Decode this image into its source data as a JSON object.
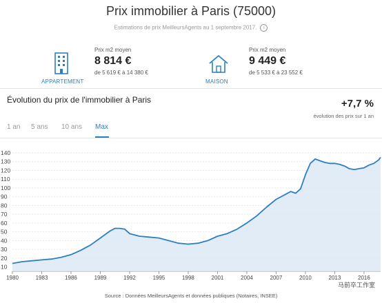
{
  "header": {
    "title": "Prix immobilier à Paris (75000)",
    "subtitle": "Estimations de prix MeilleursAgents au 1 septembre 2017.",
    "info_icon": "info-icon"
  },
  "stats": [
    {
      "icon": "building-icon",
      "caption": "APPARTEMENT",
      "label": "Prix m2 moyen",
      "value": "8 814 €",
      "range": "de 5 619 € à 14 380 €"
    },
    {
      "icon": "house-icon",
      "caption": "MAISON",
      "label": "Prix m2 moyen",
      "value": "9 449 €",
      "range": "de 5 533 € à 23 552 €"
    }
  ],
  "section": {
    "title": "Évolution du prix de l'immobilier à Paris",
    "delta": "+7,7 %",
    "delta_note": "évolution des prix sur 1 an"
  },
  "range_tabs": [
    {
      "label": "1 an",
      "active": false
    },
    {
      "label": "5 ans",
      "active": false
    },
    {
      "label": "10 ans",
      "active": false
    },
    {
      "label": "Max",
      "active": true
    }
  ],
  "colors": {
    "line": "#2b7fc1",
    "fill": "#dce9f6",
    "accent": "#2b7fc1"
  },
  "chart_data": {
    "type": "area",
    "title": "",
    "xlabel": "",
    "ylabel": "",
    "x_ticks": [
      "1980",
      "1983",
      "1986",
      "1989",
      "1992",
      "1995",
      "1998",
      "2001",
      "2004",
      "2007",
      "2010",
      "2013",
      "2016"
    ],
    "y_ticks": [
      10,
      20,
      30,
      40,
      50,
      60,
      70,
      80,
      90,
      100,
      110,
      120,
      130,
      140
    ],
    "xlim": [
      1980,
      2017.7
    ],
    "ylim": [
      5,
      140
    ],
    "grid": true,
    "series": [
      {
        "x": [
          1980,
          1981,
          1982,
          1983,
          1984,
          1985,
          1986,
          1987,
          1988,
          1989,
          1990,
          1990.5,
          1991,
          1991.5,
          1992,
          1993,
          1994,
          1995,
          1996,
          1997,
          1998,
          1999,
          2000,
          2001,
          2002,
          2003,
          2004,
          2005,
          2006,
          2007,
          2008,
          2008.5,
          2009,
          2009.5,
          2010,
          2010.5,
          2011,
          2011.5,
          2012,
          2012.5,
          2013,
          2013.5,
          2014,
          2014.5,
          2015,
          2015.5,
          2016,
          2016.5,
          2017,
          2017.5,
          2017.7
        ],
        "values": [
          14,
          16,
          17,
          18,
          19,
          21,
          24,
          29,
          35,
          43,
          51,
          54,
          54,
          53,
          48,
          45,
          44,
          43,
          40,
          37,
          36,
          37,
          40,
          45,
          48,
          53,
          60,
          68,
          78,
          87,
          93,
          96,
          94,
          99,
          115,
          128,
          133,
          131,
          129,
          128,
          128,
          127,
          125,
          122,
          121,
          122,
          123,
          126,
          128,
          132,
          135
        ]
      }
    ]
  },
  "source": "Source : Données MeilleursAgents et données publiques (Notaires, INSEE)",
  "watermark": "马前卒工作室"
}
